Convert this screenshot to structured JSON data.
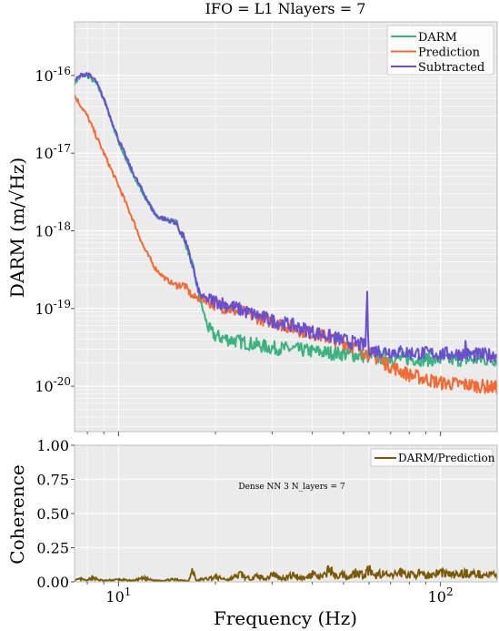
{
  "colors": {
    "darm": "#3bb37f",
    "prediction": "#f36a34",
    "subtracted": "#6a4fd1",
    "coherence": "#7a5a00",
    "annotation": "#6a4fd1",
    "panel_bg": "#ebebeb",
    "grid": "#ffffff"
  },
  "chart_data": [
    {
      "type": "line",
      "title": "IFO = L1 Nlayers = 7",
      "xlabel": "",
      "ylabel": "DARM (m/√Hz)",
      "x_scale": "log",
      "y_scale": "log",
      "xlim": [
        7.3,
        150
      ],
      "ylim": [
        2.6e-21,
        4.9e-16
      ],
      "yticks": [
        1e-20,
        1e-19,
        1e-18,
        1e-17,
        1e-16
      ],
      "ytick_labels": [
        "10-20",
        "10-19",
        "10-18",
        "10-17",
        "10-16"
      ],
      "grid": true,
      "legend": "top-right",
      "series": [
        {
          "name": "DARM",
          "color_key": "darm",
          "x": [
            7.3,
            7.7,
            8.0,
            8.5,
            9.0,
            9.5,
            10.0,
            11.0,
            12.0,
            13.0,
            14.0,
            15.0,
            16.0,
            17.0,
            17.5,
            18.0,
            18.5,
            19.0,
            20.0,
            22.0,
            25.0,
            30.0,
            35.0,
            40.0,
            50.0,
            60.0,
            70.0,
            80.0,
            100.0,
            120.0,
            150.0
          ],
          "y": [
            8e-17,
            1e-16,
            1e-16,
            8e-17,
            5e-17,
            2.6e-17,
            1.4e-17,
            5.5e-18,
            2.9e-18,
            1.6e-18,
            1.4e-18,
            1.3e-18,
            8e-19,
            3.5e-19,
            2e-19,
            1.2e-19,
            8e-20,
            5.5e-20,
            4.4e-20,
            4e-20,
            3.6e-20,
            3.1e-20,
            3e-20,
            2.8e-20,
            2.6e-20,
            2.4e-20,
            2.3e-20,
            2.25e-20,
            2.2e-20,
            2.2e-20,
            2.2e-20
          ]
        },
        {
          "name": "Prediction",
          "color_key": "prediction",
          "x": [
            7.3,
            8.0,
            9.0,
            10.0,
            11.0,
            12.0,
            13.0,
            14.0,
            15.0,
            16.0,
            17.0,
            18.0,
            18.5,
            19.0,
            20.0,
            22.0,
            25.0,
            30.0,
            35.0,
            40.0,
            45.0,
            50.0,
            60.0,
            70.0,
            80.0,
            100.0,
            120.0,
            150.0
          ],
          "y": [
            5.5e-17,
            3e-17,
            1e-17,
            3.8e-18,
            1.5e-18,
            6e-19,
            3.3e-19,
            2.4e-19,
            2e-19,
            2e-19,
            1.4e-19,
            1.35e-19,
            1.3e-19,
            1.25e-19,
            1.15e-19,
            1e-19,
            8.5e-20,
            6.8e-20,
            5.6e-20,
            4.8e-20,
            4.2e-20,
            3.7e-20,
            2.6e-20,
            1.8e-20,
            1.4e-20,
            1.1e-20,
            1.05e-20,
            9.5e-21
          ]
        },
        {
          "name": "Subtracted",
          "color_key": "subtracted",
          "x": [
            7.3,
            7.7,
            8.0,
            8.5,
            9.0,
            9.5,
            10.0,
            11.0,
            12.0,
            13.0,
            14.0,
            15.0,
            16.0,
            17.0,
            17.5,
            18.0,
            18.5,
            19.0,
            20.0,
            22.0,
            25.0,
            30.0,
            35.0,
            40.0,
            45.0,
            50.0,
            58.5,
            59.2,
            59.6,
            60.4,
            61.0,
            70.0,
            80.0,
            100.0,
            119.0,
            119.8,
            120.6,
            121.5,
            150.0
          ],
          "y": [
            8.5e-17,
            1.03e-16,
            1.05e-16,
            8.5e-17,
            5e-17,
            2.7e-17,
            1.5e-17,
            6e-18,
            3e-18,
            1.6e-18,
            1.4e-18,
            1.3e-18,
            8e-19,
            3.5e-19,
            2e-19,
            1.45e-19,
            1.35e-19,
            1.3e-19,
            1.25e-19,
            1.1e-19,
            9e-20,
            7e-20,
            6e-20,
            5e-20,
            4.4e-20,
            3.9e-20,
            3.3e-20,
            1.65e-19,
            3.2e-20,
            3e-20,
            2.9e-20,
            2.8e-20,
            2.7e-20,
            2.6e-20,
            2.6e-20,
            4e-20,
            2.6e-20,
            2.55e-20,
            2.5e-20
          ]
        }
      ]
    },
    {
      "type": "line",
      "title": "",
      "xlabel": "Frequency (Hz)",
      "ylabel": "Coherence",
      "x_scale": "log",
      "y_scale": "linear",
      "xlim": [
        7.3,
        150
      ],
      "ylim": [
        0,
        1
      ],
      "yticks": [
        0.0,
        0.25,
        0.5,
        0.75,
        1.0
      ],
      "ytick_labels": [
        "0.00",
        "0.25",
        "0.50",
        "0.75",
        "1.00"
      ],
      "xticks": [
        10,
        100
      ],
      "xtick_labels": [
        "101",
        "102"
      ],
      "grid": true,
      "legend": "top-right",
      "annotation": "Dense NN 3 N_layers = 7",
      "series": [
        {
          "name": "DARM/Prediction",
          "color_key": "coherence",
          "x": [
            7.3,
            7.6,
            8.0,
            8.3,
            8.6,
            9.0,
            10.0,
            11.0,
            12.0,
            13.0,
            15.0,
            16.5,
            17.0,
            17.5,
            18.0,
            20.0,
            22.0,
            24.0,
            25.0,
            27.0,
            29.0,
            30.0,
            32.0,
            35.0,
            38.0,
            40.0,
            42.0,
            44.0,
            45.0,
            47.0,
            50.0,
            52.0,
            55.0,
            58.0,
            60.0,
            62.0,
            65.0,
            70.0,
            75.0,
            80.0,
            85.0,
            90.0,
            100.0,
            110.0,
            120.0,
            130.0,
            140.0,
            150.0
          ],
          "y": [
            0.01,
            0.025,
            0.01,
            0.045,
            0.02,
            0.01,
            0.02,
            0.01,
            0.03,
            0.01,
            0.02,
            0.01,
            0.1,
            0.01,
            0.02,
            0.04,
            0.02,
            0.07,
            0.03,
            0.05,
            0.03,
            0.08,
            0.03,
            0.06,
            0.03,
            0.08,
            0.04,
            0.06,
            0.13,
            0.05,
            0.07,
            0.04,
            0.1,
            0.05,
            0.12,
            0.04,
            0.08,
            0.05,
            0.09,
            0.06,
            0.08,
            0.05,
            0.09,
            0.06,
            0.08,
            0.07,
            0.06,
            0.07
          ]
        }
      ]
    }
  ]
}
